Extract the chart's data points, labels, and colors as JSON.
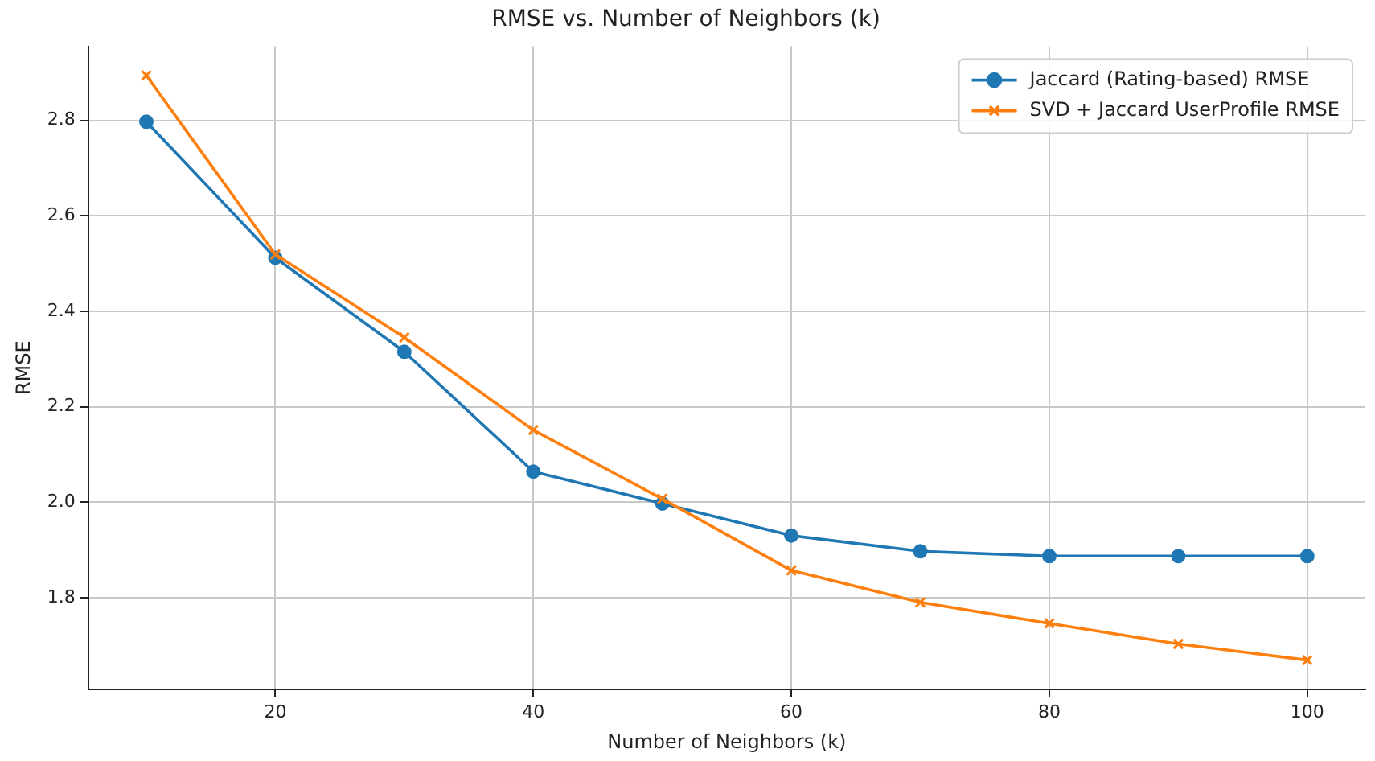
{
  "chart_data": {
    "type": "line",
    "title": "RMSE vs. Number of Neighbors (k)",
    "xlabel": "Number of Neighbors (k)",
    "ylabel": "RMSE",
    "x": [
      10,
      20,
      30,
      40,
      50,
      60,
      70,
      80,
      90,
      100
    ],
    "series": [
      {
        "name": "Jaccard (Rating-based) RMSE",
        "color": "#1f77b4",
        "marker": "circle",
        "values": [
          2.797,
          2.512,
          2.315,
          2.064,
          1.997,
          1.93,
          1.897,
          1.887,
          1.887,
          1.887
        ]
      },
      {
        "name": "SVD + Jaccard UserProfile RMSE",
        "color": "#ff7f0e",
        "marker": "cross",
        "values": [
          2.894,
          2.519,
          2.345,
          2.151,
          2.007,
          1.857,
          1.79,
          1.746,
          1.703,
          1.669
        ]
      }
    ],
    "xlim": [
      5.5,
      104.5
    ],
    "xticks": [
      20,
      40,
      60,
      80,
      100
    ],
    "ylim": [
      1.608,
      2.955
    ],
    "yticks": [
      1.8,
      {
        "value": 2,
        "label": "2.0"
      },
      2.2,
      2.4,
      2.6,
      2.8
    ],
    "grid": true,
    "legend": "top right",
    "line_style": "solid"
  }
}
